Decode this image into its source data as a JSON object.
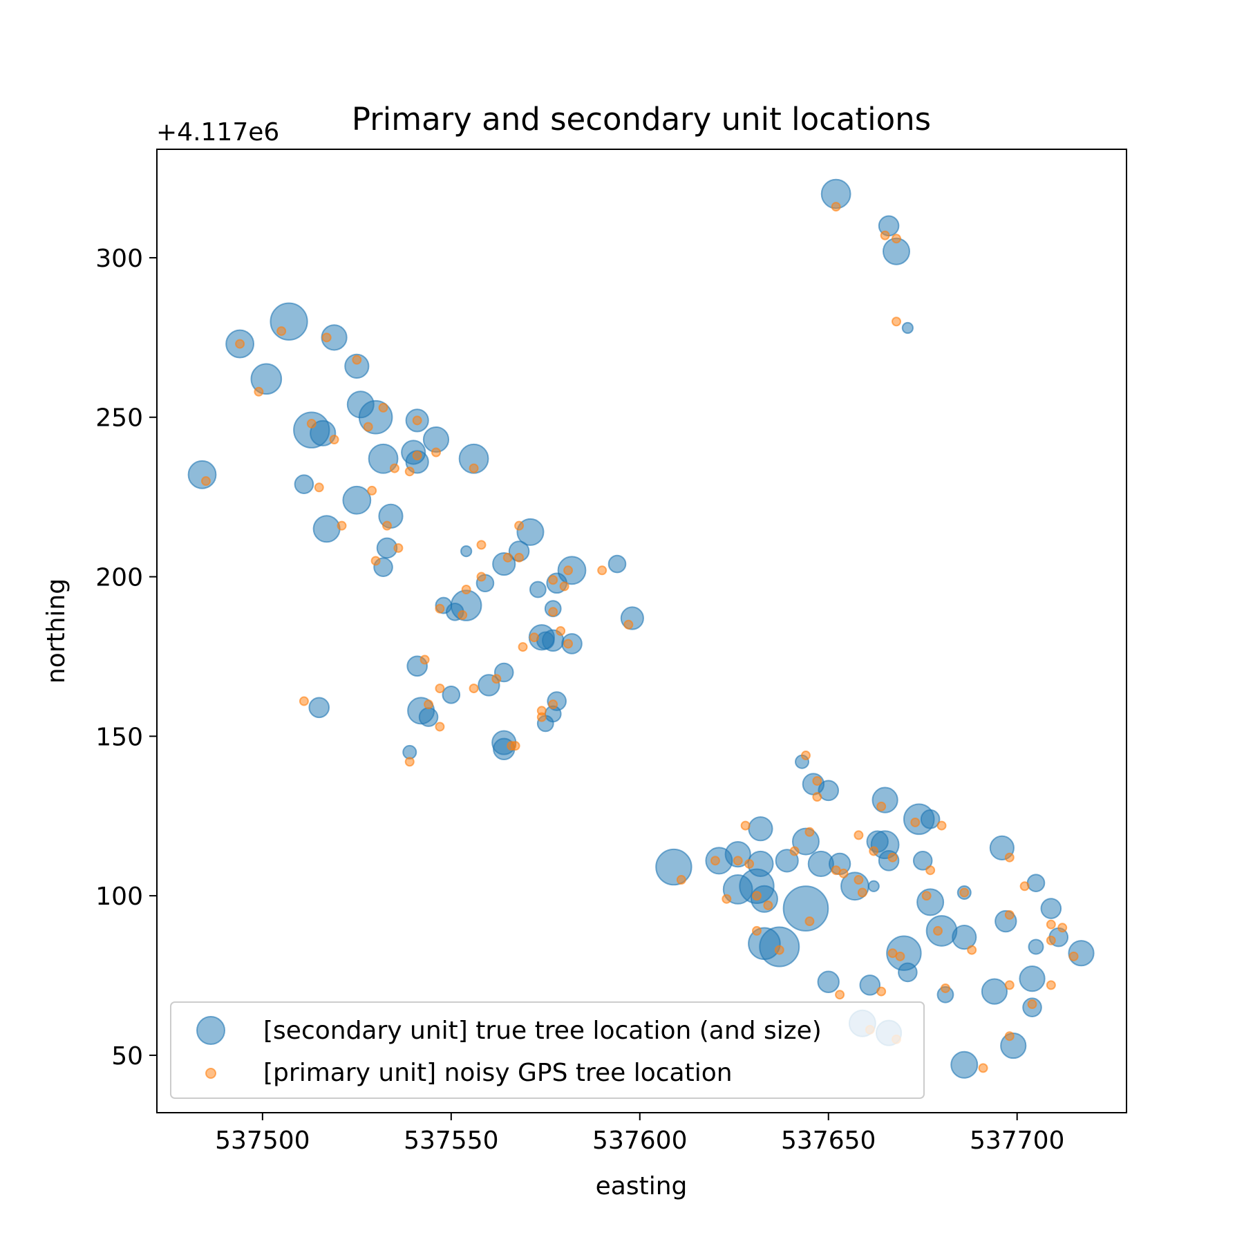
{
  "chart_data": {
    "type": "scatter",
    "title": "Primary and secondary unit locations",
    "xlabel": "easting",
    "ylabel": "northing",
    "y_offset_label": "+4.117e6",
    "xlim": [
      537472,
      537729
    ],
    "ylim": [
      32,
      334
    ],
    "x_ticks": [
      537500,
      537550,
      537600,
      537650,
      537700
    ],
    "y_ticks": [
      50,
      100,
      150,
      200,
      250,
      300
    ],
    "grid": false,
    "legend_position": "lower-left",
    "colors": {
      "secondary": "#1f77b4",
      "primary": "#ff7f0e"
    },
    "series": [
      {
        "name": "[secondary unit] true tree location (and size)",
        "marker": "circle",
        "alpha": 0.5,
        "points": [
          {
            "x": 537652,
            "y": 320,
            "s": 2.2
          },
          {
            "x": 537666,
            "y": 310,
            "s": 1.5
          },
          {
            "x": 537668,
            "y": 302,
            "s": 2.0
          },
          {
            "x": 537671,
            "y": 278,
            "s": 0.8
          },
          {
            "x": 537507,
            "y": 280,
            "s": 2.8
          },
          {
            "x": 537494,
            "y": 273,
            "s": 2.1
          },
          {
            "x": 537519,
            "y": 275,
            "s": 1.9
          },
          {
            "x": 537501,
            "y": 262,
            "s": 2.3
          },
          {
            "x": 537525,
            "y": 266,
            "s": 1.8
          },
          {
            "x": 537526,
            "y": 254,
            "s": 2.0
          },
          {
            "x": 537530,
            "y": 250,
            "s": 2.5
          },
          {
            "x": 537513,
            "y": 246,
            "s": 2.7
          },
          {
            "x": 537516,
            "y": 245,
            "s": 1.9
          },
          {
            "x": 537541,
            "y": 249,
            "s": 1.7
          },
          {
            "x": 537546,
            "y": 243,
            "s": 1.9
          },
          {
            "x": 537532,
            "y": 237,
            "s": 2.2
          },
          {
            "x": 537540,
            "y": 239,
            "s": 1.8
          },
          {
            "x": 537541,
            "y": 236,
            "s": 1.7
          },
          {
            "x": 537556,
            "y": 237,
            "s": 2.2
          },
          {
            "x": 537484,
            "y": 232,
            "s": 2.1
          },
          {
            "x": 537511,
            "y": 229,
            "s": 1.4
          },
          {
            "x": 537525,
            "y": 224,
            "s": 2.1
          },
          {
            "x": 537534,
            "y": 219,
            "s": 1.8
          },
          {
            "x": 537517,
            "y": 215,
            "s": 2.0
          },
          {
            "x": 537571,
            "y": 214,
            "s": 2.0
          },
          {
            "x": 537533,
            "y": 209,
            "s": 1.5
          },
          {
            "x": 537532,
            "y": 203,
            "s": 1.4
          },
          {
            "x": 537554,
            "y": 208,
            "s": 0.8
          },
          {
            "x": 537568,
            "y": 208,
            "s": 1.5
          },
          {
            "x": 537564,
            "y": 204,
            "s": 1.7
          },
          {
            "x": 537594,
            "y": 204,
            "s": 1.3
          },
          {
            "x": 537582,
            "y": 202,
            "s": 2.1
          },
          {
            "x": 537559,
            "y": 198,
            "s": 1.3
          },
          {
            "x": 537578,
            "y": 198,
            "s": 1.5
          },
          {
            "x": 537573,
            "y": 196,
            "s": 1.2
          },
          {
            "x": 537548,
            "y": 191,
            "s": 1.2
          },
          {
            "x": 537554,
            "y": 191,
            "s": 2.3
          },
          {
            "x": 537551,
            "y": 189,
            "s": 1.3
          },
          {
            "x": 537577,
            "y": 190,
            "s": 1.2
          },
          {
            "x": 537598,
            "y": 187,
            "s": 1.7
          },
          {
            "x": 537574,
            "y": 181,
            "s": 1.9
          },
          {
            "x": 537577,
            "y": 180,
            "s": 1.6
          },
          {
            "x": 537575,
            "y": 180,
            "s": 1.3
          },
          {
            "x": 537582,
            "y": 179,
            "s": 1.5
          },
          {
            "x": 537541,
            "y": 172,
            "s": 1.5
          },
          {
            "x": 537564,
            "y": 170,
            "s": 1.4
          },
          {
            "x": 537560,
            "y": 166,
            "s": 1.6
          },
          {
            "x": 537550,
            "y": 163,
            "s": 1.3
          },
          {
            "x": 537578,
            "y": 161,
            "s": 1.4
          },
          {
            "x": 537515,
            "y": 159,
            "s": 1.5
          },
          {
            "x": 537542,
            "y": 158,
            "s": 2.0
          },
          {
            "x": 537544,
            "y": 156,
            "s": 1.4
          },
          {
            "x": 537577,
            "y": 157,
            "s": 1.2
          },
          {
            "x": 537575,
            "y": 154,
            "s": 1.2
          },
          {
            "x": 537564,
            "y": 148,
            "s": 1.8
          },
          {
            "x": 537564,
            "y": 146,
            "s": 1.6
          },
          {
            "x": 537539,
            "y": 145,
            "s": 1.0
          },
          {
            "x": 537643,
            "y": 142,
            "s": 1.0
          },
          {
            "x": 537646,
            "y": 135,
            "s": 1.6
          },
          {
            "x": 537650,
            "y": 133,
            "s": 1.5
          },
          {
            "x": 537665,
            "y": 130,
            "s": 1.9
          },
          {
            "x": 537674,
            "y": 124,
            "s": 2.3
          },
          {
            "x": 537677,
            "y": 124,
            "s": 1.4
          },
          {
            "x": 537632,
            "y": 121,
            "s": 1.8
          },
          {
            "x": 537644,
            "y": 117,
            "s": 2.0
          },
          {
            "x": 537663,
            "y": 117,
            "s": 1.6
          },
          {
            "x": 537665,
            "y": 116,
            "s": 2.1
          },
          {
            "x": 537696,
            "y": 115,
            "s": 1.8
          },
          {
            "x": 537621,
            "y": 111,
            "s": 2.0
          },
          {
            "x": 537626,
            "y": 113,
            "s": 1.9
          },
          {
            "x": 537632,
            "y": 110,
            "s": 1.9
          },
          {
            "x": 537639,
            "y": 111,
            "s": 1.7
          },
          {
            "x": 537648,
            "y": 110,
            "s": 1.9
          },
          {
            "x": 537653,
            "y": 110,
            "s": 1.6
          },
          {
            "x": 537666,
            "y": 111,
            "s": 1.5
          },
          {
            "x": 537675,
            "y": 111,
            "s": 1.4
          },
          {
            "x": 537609,
            "y": 109,
            "s": 2.7
          },
          {
            "x": 537626,
            "y": 102,
            "s": 2.2
          },
          {
            "x": 537631,
            "y": 103,
            "s": 2.6
          },
          {
            "x": 537657,
            "y": 103,
            "s": 2.1
          },
          {
            "x": 537662,
            "y": 103,
            "s": 0.8
          },
          {
            "x": 537705,
            "y": 104,
            "s": 1.3
          },
          {
            "x": 537686,
            "y": 101,
            "s": 1.0
          },
          {
            "x": 537633,
            "y": 99,
            "s": 2.0
          },
          {
            "x": 537677,
            "y": 98,
            "s": 2.0
          },
          {
            "x": 537644,
            "y": 96,
            "s": 3.4
          },
          {
            "x": 537709,
            "y": 96,
            "s": 1.5
          },
          {
            "x": 537697,
            "y": 92,
            "s": 1.6
          },
          {
            "x": 537680,
            "y": 89,
            "s": 2.3
          },
          {
            "x": 537686,
            "y": 87,
            "s": 1.8
          },
          {
            "x": 537711,
            "y": 87,
            "s": 1.4
          },
          {
            "x": 537633,
            "y": 85,
            "s": 2.4
          },
          {
            "x": 537637,
            "y": 84,
            "s": 3.0
          },
          {
            "x": 537670,
            "y": 82,
            "s": 2.6
          },
          {
            "x": 537705,
            "y": 84,
            "s": 1.1
          },
          {
            "x": 537717,
            "y": 82,
            "s": 1.9
          },
          {
            "x": 537671,
            "y": 76,
            "s": 1.4
          },
          {
            "x": 537650,
            "y": 73,
            "s": 1.6
          },
          {
            "x": 537704,
            "y": 74,
            "s": 1.9
          },
          {
            "x": 537661,
            "y": 72,
            "s": 1.5
          },
          {
            "x": 537694,
            "y": 70,
            "s": 1.9
          },
          {
            "x": 537681,
            "y": 69,
            "s": 1.2
          },
          {
            "x": 537704,
            "y": 65,
            "s": 1.4
          },
          {
            "x": 537659,
            "y": 60,
            "s": 2.0
          },
          {
            "x": 537666,
            "y": 57,
            "s": 1.9
          },
          {
            "x": 537699,
            "y": 53,
            "s": 1.9
          },
          {
            "x": 537686,
            "y": 47,
            "s": 2.0
          }
        ]
      },
      {
        "name": "[primary unit] noisy GPS tree location",
        "marker": "circle",
        "alpha": 0.5,
        "points": [
          {
            "x": 537652,
            "y": 316
          },
          {
            "x": 537665,
            "y": 307
          },
          {
            "x": 537668,
            "y": 306
          },
          {
            "x": 537668,
            "y": 280
          },
          {
            "x": 537505,
            "y": 277
          },
          {
            "x": 537494,
            "y": 273
          },
          {
            "x": 537517,
            "y": 275
          },
          {
            "x": 537525,
            "y": 268
          },
          {
            "x": 537499,
            "y": 258
          },
          {
            "x": 537532,
            "y": 253
          },
          {
            "x": 537528,
            "y": 247
          },
          {
            "x": 537513,
            "y": 248
          },
          {
            "x": 537519,
            "y": 243
          },
          {
            "x": 537541,
            "y": 249
          },
          {
            "x": 537546,
            "y": 239
          },
          {
            "x": 537535,
            "y": 234
          },
          {
            "x": 537539,
            "y": 233
          },
          {
            "x": 537541,
            "y": 238
          },
          {
            "x": 537556,
            "y": 234
          },
          {
            "x": 537485,
            "y": 230
          },
          {
            "x": 537515,
            "y": 228
          },
          {
            "x": 537529,
            "y": 227
          },
          {
            "x": 537533,
            "y": 216
          },
          {
            "x": 537521,
            "y": 216
          },
          {
            "x": 537568,
            "y": 216
          },
          {
            "x": 537536,
            "y": 209
          },
          {
            "x": 537530,
            "y": 205
          },
          {
            "x": 537558,
            "y": 210
          },
          {
            "x": 537568,
            "y": 206
          },
          {
            "x": 537565,
            "y": 206
          },
          {
            "x": 537590,
            "y": 202
          },
          {
            "x": 537581,
            "y": 202
          },
          {
            "x": 537558,
            "y": 200
          },
          {
            "x": 537577,
            "y": 199
          },
          {
            "x": 537580,
            "y": 197
          },
          {
            "x": 537547,
            "y": 190
          },
          {
            "x": 537554,
            "y": 196
          },
          {
            "x": 537553,
            "y": 188
          },
          {
            "x": 537577,
            "y": 189
          },
          {
            "x": 537597,
            "y": 185
          },
          {
            "x": 537572,
            "y": 181
          },
          {
            "x": 537579,
            "y": 183
          },
          {
            "x": 537569,
            "y": 178
          },
          {
            "x": 537581,
            "y": 179
          },
          {
            "x": 537543,
            "y": 174
          },
          {
            "x": 537562,
            "y": 168
          },
          {
            "x": 537556,
            "y": 165
          },
          {
            "x": 537547,
            "y": 165
          },
          {
            "x": 537577,
            "y": 160
          },
          {
            "x": 537511,
            "y": 161
          },
          {
            "x": 537544,
            "y": 160
          },
          {
            "x": 537574,
            "y": 158
          },
          {
            "x": 537574,
            "y": 156
          },
          {
            "x": 537547,
            "y": 153
          },
          {
            "x": 537567,
            "y": 147
          },
          {
            "x": 537566,
            "y": 147
          },
          {
            "x": 537539,
            "y": 142
          },
          {
            "x": 537644,
            "y": 144
          },
          {
            "x": 537647,
            "y": 136
          },
          {
            "x": 537647,
            "y": 131
          },
          {
            "x": 537664,
            "y": 128
          },
          {
            "x": 537673,
            "y": 123
          },
          {
            "x": 537680,
            "y": 122
          },
          {
            "x": 537628,
            "y": 122
          },
          {
            "x": 537645,
            "y": 120
          },
          {
            "x": 537658,
            "y": 119
          },
          {
            "x": 537662,
            "y": 114
          },
          {
            "x": 537698,
            "y": 112
          },
          {
            "x": 537620,
            "y": 111
          },
          {
            "x": 537626,
            "y": 111
          },
          {
            "x": 537629,
            "y": 110
          },
          {
            "x": 537641,
            "y": 114
          },
          {
            "x": 537652,
            "y": 108
          },
          {
            "x": 537654,
            "y": 107
          },
          {
            "x": 537667,
            "y": 112
          },
          {
            "x": 537677,
            "y": 108
          },
          {
            "x": 537611,
            "y": 105
          },
          {
            "x": 537623,
            "y": 99
          },
          {
            "x": 537631,
            "y": 100
          },
          {
            "x": 537658,
            "y": 105
          },
          {
            "x": 537659,
            "y": 101
          },
          {
            "x": 537702,
            "y": 103
          },
          {
            "x": 537686,
            "y": 101
          },
          {
            "x": 537634,
            "y": 97
          },
          {
            "x": 537676,
            "y": 100
          },
          {
            "x": 537645,
            "y": 92
          },
          {
            "x": 537709,
            "y": 91
          },
          {
            "x": 537698,
            "y": 94
          },
          {
            "x": 537679,
            "y": 89
          },
          {
            "x": 537688,
            "y": 83
          },
          {
            "x": 537712,
            "y": 90
          },
          {
            "x": 537631,
            "y": 89
          },
          {
            "x": 537637,
            "y": 83
          },
          {
            "x": 537667,
            "y": 82
          },
          {
            "x": 537709,
            "y": 86
          },
          {
            "x": 537715,
            "y": 81
          },
          {
            "x": 537669,
            "y": 81
          },
          {
            "x": 537653,
            "y": 69
          },
          {
            "x": 537709,
            "y": 72
          },
          {
            "x": 537664,
            "y": 70
          },
          {
            "x": 537698,
            "y": 72
          },
          {
            "x": 537681,
            "y": 71
          },
          {
            "x": 537704,
            "y": 66
          },
          {
            "x": 537661,
            "y": 58
          },
          {
            "x": 537668,
            "y": 55
          },
          {
            "x": 537698,
            "y": 56
          },
          {
            "x": 537691,
            "y": 46
          }
        ]
      }
    ]
  }
}
